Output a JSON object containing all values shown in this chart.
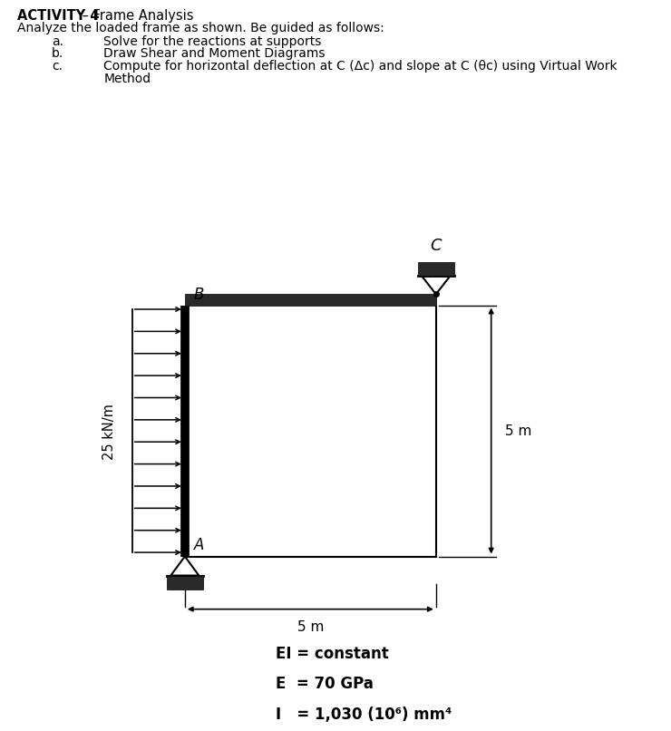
{
  "title_bold": "ACTIVITY 4",
  "title_dash": " – Frame Analysis",
  "subtitle": "Analyze the loaded frame as shown. Be guided as follows:",
  "items": [
    [
      "a.",
      "Solve for the reactions at supports"
    ],
    [
      "b.",
      "Draw Shear and Moment Diagrams"
    ],
    [
      "c.",
      "Compute for horizontal deflection at C (Δc) and slope at C (θc) using Virtual Work\nMethod"
    ]
  ],
  "dim_horizontal": "5 m",
  "dim_vertical": "5 m",
  "load_label": "25 kN/m",
  "EI_text": "EI = constant",
  "E_text": "E  = 70 GPa",
  "I_text": "I   = 1,030 (10⁶) mm⁴",
  "bg_color": "#ffffff",
  "beam_color": "#2a2a2a",
  "col_color": "#000000"
}
